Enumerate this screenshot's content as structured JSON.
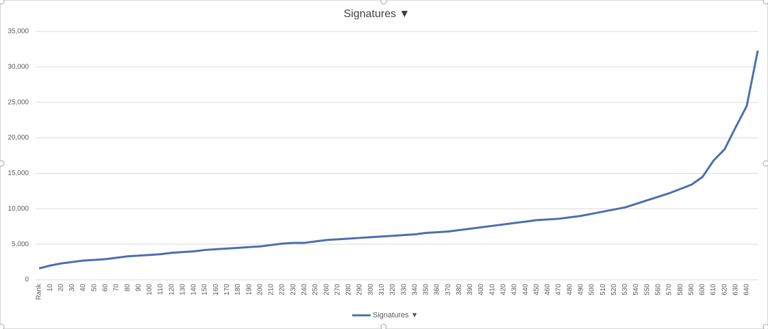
{
  "chart_data": {
    "type": "line",
    "title": "Signatures ▼",
    "categories": [
      "Rank",
      "10",
      "20",
      "30",
      "40",
      "50",
      "60",
      "70",
      "80",
      "90",
      "100",
      "110",
      "120",
      "130",
      "140",
      "150",
      "160",
      "170",
      "180",
      "190",
      "200",
      "210",
      "220",
      "230",
      "240",
      "250",
      "260",
      "270",
      "280",
      "290",
      "300",
      "310",
      "320",
      "330",
      "340",
      "350",
      "360",
      "370",
      "380",
      "390",
      "400",
      "410",
      "420",
      "430",
      "440",
      "450",
      "460",
      "470",
      "480",
      "490",
      "500",
      "510",
      "520",
      "530",
      "540",
      "550",
      "560",
      "570",
      "580",
      "590",
      "600",
      "610",
      "620",
      "630",
      "640",
      null
    ],
    "series": [
      {
        "name": "Signatures ▼",
        "color": "#4a6fae",
        "values": [
          1600,
          2000,
          2300,
          2500,
          2700,
          2800,
          2900,
          3100,
          3300,
          3400,
          3500,
          3600,
          3800,
          3900,
          4000,
          4200,
          4300,
          4400,
          4500,
          4600,
          4700,
          4900,
          5100,
          5200,
          5200,
          5400,
          5600,
          5700,
          5800,
          5900,
          6000,
          6100,
          6200,
          6300,
          6400,
          6600,
          6700,
          6800,
          7000,
          7200,
          7400,
          7600,
          7800,
          8000,
          8200,
          8400,
          8500,
          8600,
          8800,
          9000,
          9300,
          9600,
          9900,
          10200,
          10700,
          11200,
          11700,
          12200,
          12800,
          13400,
          14500,
          16800,
          18400,
          21500,
          24500,
          32300
        ]
      }
    ],
    "ylim": [
      0,
      35000
    ],
    "yticks": [
      0,
      {
        "value": 5000,
        "label": "5,000"
      },
      {
        "value": 10000,
        "label": "10,000"
      },
      {
        "value": 15000,
        "label": "15,000"
      },
      {
        "value": 20000,
        "label": "20,000"
      },
      {
        "value": 25000,
        "label": "25,000"
      },
      {
        "value": 30000,
        "label": "30,000"
      },
      {
        "value": 35000,
        "label": "35,000"
      }
    ],
    "grid": true,
    "legend": "bottom"
  }
}
